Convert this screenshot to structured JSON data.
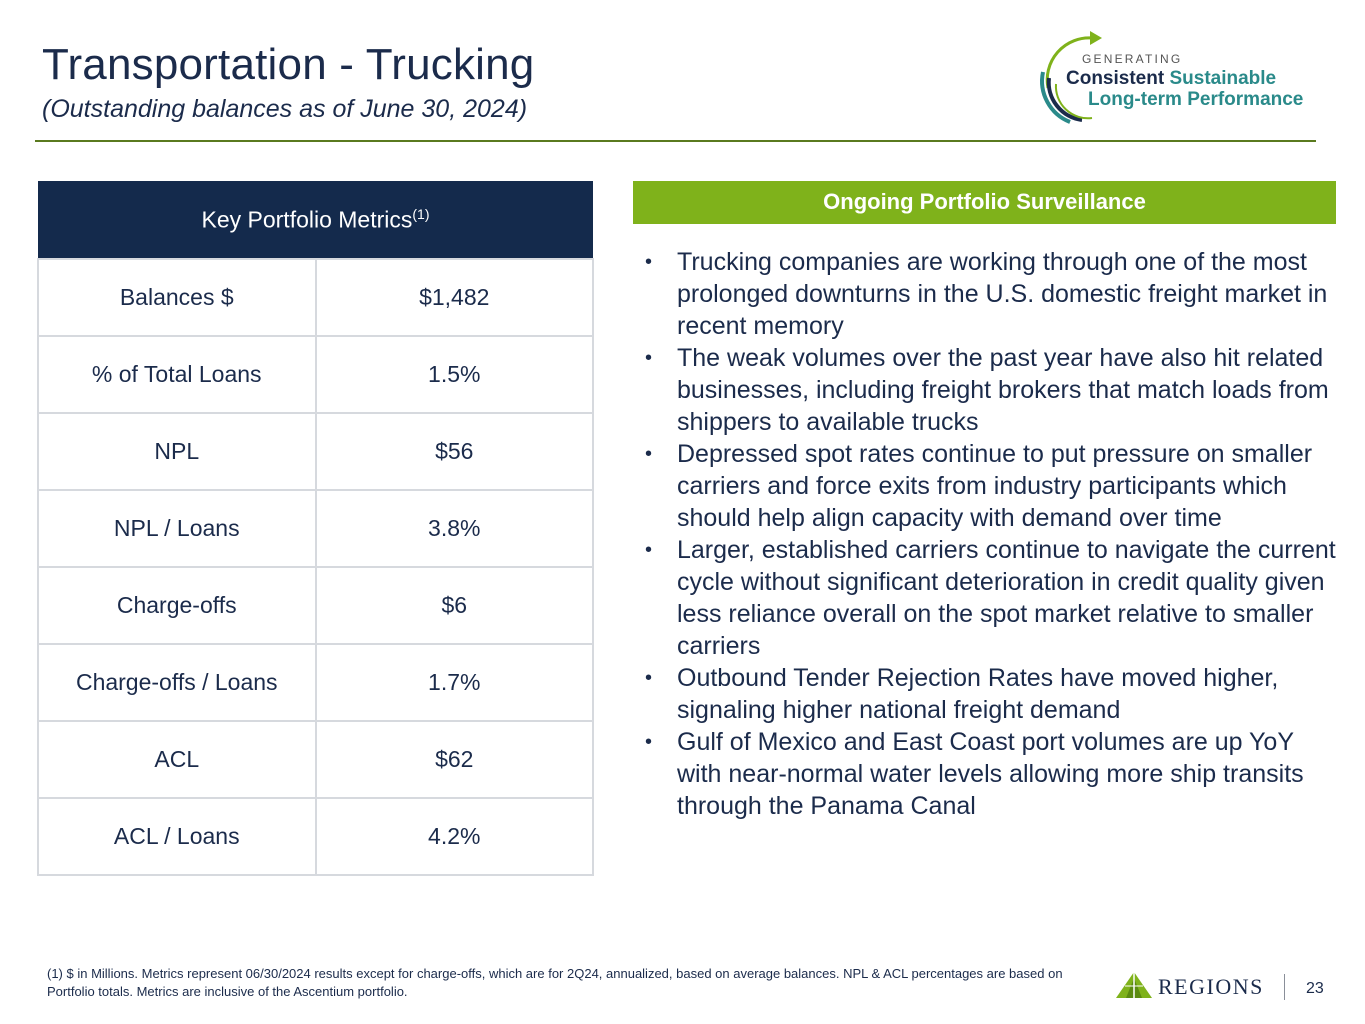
{
  "header": {
    "title": "Transportation - Trucking",
    "subtitle": "(Outstanding balances as of June 30, 2024)"
  },
  "logo": {
    "generating": "GENERATING",
    "line1a": "Consistent",
    "line1b": "Sustainable",
    "line2": "Long-term Performance"
  },
  "metrics": {
    "header": "Key Portfolio Metrics",
    "header_note": "(1)",
    "rows": [
      {
        "label": "Balances $",
        "value": "$1,482"
      },
      {
        "label": "% of Total Loans",
        "value": "1.5%"
      },
      {
        "label": "NPL",
        "value": "$56"
      },
      {
        "label": "NPL / Loans",
        "value": "3.8%"
      },
      {
        "label": "Charge-offs",
        "value": "$6"
      },
      {
        "label": "Charge-offs / Loans",
        "value": "1.7%"
      },
      {
        "label": "ACL",
        "value": "$62"
      },
      {
        "label": "ACL / Loans",
        "value": "4.2%"
      }
    ]
  },
  "surveillance": {
    "heading": "Ongoing Portfolio Surveillance",
    "bullet_char": "•",
    "bullets": [
      "Trucking companies are working through one of the most prolonged downturns in the U.S. domestic freight market in recent memory",
      "The weak volumes over the past year have also hit related businesses, including freight brokers that match loads from shippers to available trucks",
      "Depressed spot rates continue to put pressure on smaller carriers and force exits from industry participants which should help align capacity with demand over time",
      "Larger, established carriers continue to navigate the current cycle without significant deterioration in credit quality given less reliance overall on the spot market relative to smaller carriers",
      "Outbound Tender Rejection Rates have moved higher, signaling higher national freight demand",
      "Gulf of Mexico and East Coast port volumes are up YoY with near-normal water levels allowing more ship transits through the Panama Canal"
    ]
  },
  "footer": {
    "footnote": "(1) $ in Millions. Metrics represent 06/30/2024 results except for charge-offs, which are for 2Q24, annualized, based on average balances. NPL & ACL percentages are based on Portfolio totals.  Metrics are inclusive of the Ascentium portfolio.",
    "brand": "REGIONS",
    "page_number": "23"
  },
  "colors": {
    "navy": "#142a4c",
    "green": "#7fb21b",
    "teal": "#2a8a8a",
    "rule": "#5a7a1f"
  }
}
